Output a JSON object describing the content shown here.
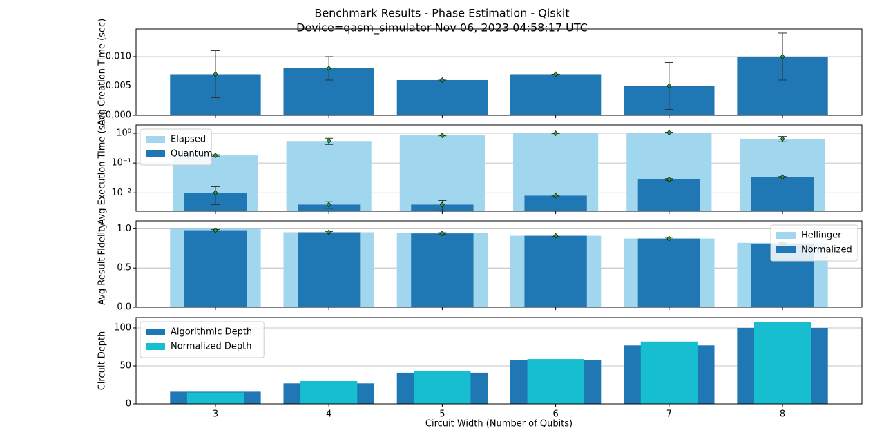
{
  "chart_data": [
    {
      "type": "bar",
      "title": "Benchmark Results - Phase Estimation - Qiskit",
      "subtitle": "Device=qasm_simulator  Nov 06, 2023 04:58:17 UTC",
      "ylabel": "Avg Creation Time (sec)",
      "x": [
        3,
        4,
        5,
        6,
        7,
        8
      ],
      "xlim": [
        2.3,
        8.7
      ],
      "values": [
        0.007,
        0.008,
        0.006,
        0.007,
        0.005,
        0.01
      ],
      "errors": [
        0.004,
        0.002,
        0,
        0,
        0.004,
        0.004
      ],
      "color": "#1f77b4",
      "marker_color": "#2ca02c",
      "ylim": [
        0,
        0.0147
      ],
      "yticks": [
        {
          "value": 0,
          "label": "0.000"
        },
        {
          "value": 0.005,
          "label": "0.005"
        },
        {
          "value": 0.01,
          "label": "0.010"
        }
      ],
      "grid": true
    },
    {
      "type": "bar",
      "ylabel": "Avg Execution Time (sec)",
      "x": [
        3,
        4,
        5,
        6,
        7,
        8
      ],
      "xlim": [
        2.3,
        8.7
      ],
      "series": [
        {
          "name": "Elapsed",
          "color": "#a1d7ee",
          "values": [
            0.18,
            0.55,
            0.85,
            1.0,
            1.05,
            0.65
          ],
          "errors": [
            0.01,
            0.13,
            0.03,
            0.03,
            0.03,
            0.13
          ]
        },
        {
          "name": "Quantum",
          "color": "#1f77b4",
          "values": [
            0.01,
            0.004,
            0.004,
            0.008,
            0.028,
            0.034
          ],
          "errors": [
            0.006,
            0.001,
            0.0015,
            0.0003,
            0.002,
            0.001
          ]
        }
      ],
      "marker_color": "#2ca02c",
      "log": true,
      "ylim": [
        0.0024,
        1.9
      ],
      "yticks": [
        {
          "value": 0.01,
          "label": "10⁻²"
        },
        {
          "value": 0.1,
          "label": "10⁻¹"
        },
        {
          "value": 1,
          "label": "10⁰"
        }
      ],
      "grid": true,
      "legend": "upper-left"
    },
    {
      "type": "bar",
      "ylabel": "Avg Result Fidelity",
      "x": [
        3,
        4,
        5,
        6,
        7,
        8
      ],
      "xlim": [
        2.3,
        8.7
      ],
      "series": [
        {
          "name": "Hellinger",
          "color": "#a1d7ee",
          "values": [
            1.0,
            0.955,
            0.945,
            0.91,
            0.875,
            0.82
          ]
        },
        {
          "name": "Normalized",
          "color": "#1f77b4",
          "values": [
            0.98,
            0.955,
            0.94,
            0.91,
            0.875,
            0.81
          ],
          "errors": [
            0.01,
            0.01,
            0.01,
            0.01,
            0.015,
            0.01
          ]
        }
      ],
      "marker_color": "#2ca02c",
      "ylim": [
        0,
        1.1
      ],
      "yticks": [
        {
          "value": 0,
          "label": "0.0"
        },
        {
          "value": 0.5,
          "label": "0.5"
        },
        {
          "value": 1,
          "label": "1.0"
        }
      ],
      "grid": true,
      "legend": "upper-right"
    },
    {
      "type": "bar",
      "ylabel": "Circuit Depth",
      "xlabel": "Circuit Width (Number of Qubits)",
      "x": [
        3,
        4,
        5,
        6,
        7,
        8
      ],
      "xlim": [
        2.3,
        8.7
      ],
      "xticks": [
        3,
        4,
        5,
        6,
        7,
        8
      ],
      "series": [
        {
          "name": "Algorithmic Depth",
          "color": "#1f77b4",
          "values": [
            16,
            27,
            41,
            58,
            77,
            100
          ]
        },
        {
          "name": "Normalized Depth",
          "color": "#17becf",
          "values": [
            15,
            30,
            43,
            59,
            82,
            108
          ]
        }
      ],
      "ylim": [
        0,
        113.6
      ],
      "yticks": [
        0,
        50,
        100
      ],
      "grid": true,
      "legend": "upper-left"
    }
  ]
}
